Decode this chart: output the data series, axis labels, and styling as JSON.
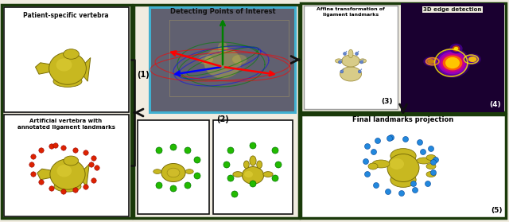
{
  "fig_width": 6.4,
  "fig_height": 2.79,
  "dpi": 100,
  "bg_color": "#f0ece0",
  "dark_green": "#1a3a0a",
  "mid_green": "#2d5a1b",
  "black": "#111111",
  "gray_bg": "#606070",
  "cyan_border": "#40b0d0",
  "white": "#ffffff",
  "light_gray": "#e8e8e8",
  "vertebra_color": "#c8b820",
  "vertebra_dark": "#7a6e08",
  "vertebra_mid": "#a89818",
  "red_dot": "#dd2200",
  "green_dot": "#22bb00",
  "blue_dot": "#2288dd",
  "purple1": "#6600aa",
  "purple2": "#9900cc",
  "magenta1": "#cc0088",
  "yellow1": "#ffee00",
  "orange1": "#ff8800",
  "label1": "Patient-specific vertebra",
  "label2_line1": "Artificial vertebra with",
  "label2_line2": "annotated ligament landmarks",
  "label_mid": "Detecting Points of Interest",
  "label3_line1": "Affine transformation of",
  "label3_line2": "ligament landmarks",
  "label4": "3D edge detection",
  "label5": "Final landmarks projection",
  "num1": "(1)",
  "num2": "(2)",
  "num3": "(3)",
  "num4": "(4)",
  "num5": "(5)"
}
